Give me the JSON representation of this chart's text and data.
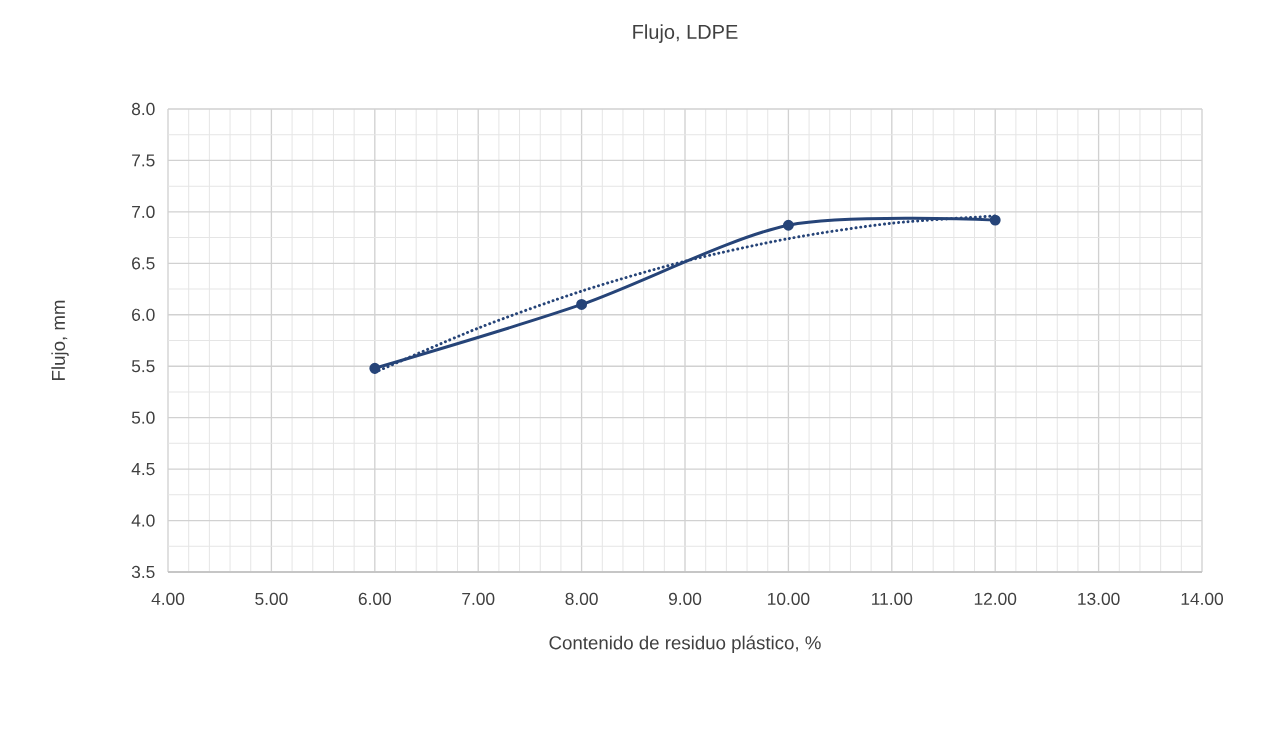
{
  "chart_data": {
    "type": "line",
    "title": "Flujo, LDPE",
    "xlabel": "Contenido de residuo plástico, %",
    "ylabel": "Flujo, mm",
    "series": [
      {
        "color": "#264478",
        "x": [
          6,
          8,
          10,
          12
        ],
        "values": [
          5.48,
          6.1,
          6.87,
          6.92
        ],
        "marker": "circle",
        "line_style": "solid"
      },
      {
        "type": "line",
        "color": "#264478",
        "x": [
          6,
          7,
          8,
          9,
          10,
          11,
          12
        ],
        "values": [
          5.44,
          5.87,
          6.23,
          6.52,
          6.74,
          6.89,
          6.96
        ],
        "marker": "none",
        "line_style": "dotted"
      }
    ],
    "xlim": [
      4,
      14
    ],
    "ylim": [
      3.5,
      8.0
    ],
    "xticks": [
      {
        "value": 4,
        "label": "4.00"
      },
      {
        "value": 5,
        "label": "5.00"
      },
      {
        "value": 6,
        "label": "6.00"
      },
      {
        "value": 7,
        "label": "7.00"
      },
      {
        "value": 8,
        "label": "8.00"
      },
      {
        "value": 9,
        "label": "9.00"
      },
      {
        "value": 10,
        "label": "10.00"
      },
      {
        "value": 11,
        "label": "11.00"
      },
      {
        "value": 12,
        "label": "12.00"
      },
      {
        "value": 13,
        "label": "13.00"
      },
      {
        "value": 14,
        "label": "14.00"
      }
    ],
    "yticks": [
      {
        "value": 3.5,
        "label": "3.5"
      },
      {
        "value": 4,
        "label": "4.0"
      },
      {
        "value": 4.5,
        "label": "4.5"
      },
      {
        "value": 5,
        "label": "5.0"
      },
      {
        "value": 5.5,
        "label": "5.5"
      },
      {
        "value": 6,
        "label": "6.0"
      },
      {
        "value": 6.5,
        "label": "6.5"
      },
      {
        "value": 7,
        "label": "7.0"
      },
      {
        "value": 7.5,
        "label": "7.5"
      },
      {
        "value": 8,
        "label": "8.0"
      }
    ],
    "grid": true
  }
}
